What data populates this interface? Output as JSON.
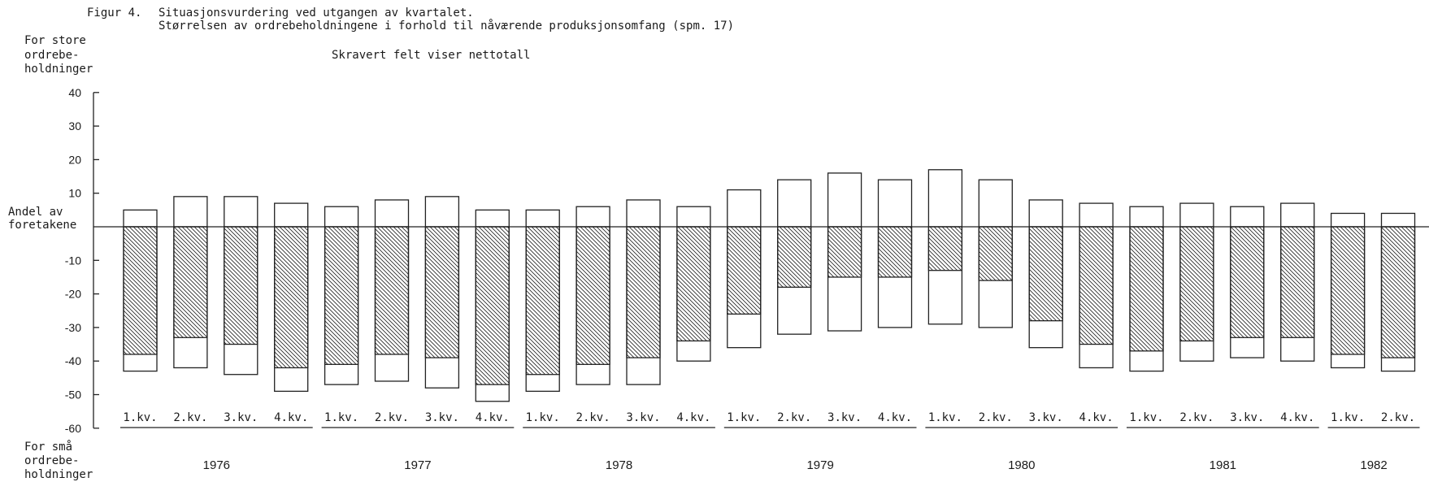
{
  "figure": {
    "label": "Figur 4.",
    "title": "Situasjonsvurdering ved utgangen av kvartalet.",
    "subtitle": "Størrelsen av ordrebeholdningene i forhold til nåværende produksjonsomfang (spm. 17)",
    "note": "Skravert felt viser nettotall",
    "top_label": [
      "For store",
      "ordrebe-",
      "holdninger"
    ],
    "bottom_label": [
      "For små",
      "ordrebe-",
      "holdninger"
    ],
    "ylabel": [
      "Andel av",
      "foretakene"
    ]
  },
  "chart_data": {
    "type": "bar",
    "ylim": [
      -60,
      40
    ],
    "yticks": [
      40,
      30,
      20,
      10,
      -10,
      -20,
      -30,
      -40,
      -50,
      -60
    ],
    "grid": false,
    "quarter_labels": [
      "1.kv.",
      "2.kv.",
      "3.kv.",
      "4.kv.",
      "1.kv.",
      "2.kv.",
      "3.kv.",
      "4.kv.",
      "1.kv.",
      "2.kv.",
      "3.kv.",
      "4.kv.",
      "1.kv.",
      "2.kv.",
      "3.kv.",
      "4.kv.",
      "1.kv.",
      "2.kv.",
      "3.kv.",
      "4.kv.",
      "1.kv.",
      "2.kv.",
      "3.kv.",
      "4.kv.",
      "1.kv.",
      "2.kv."
    ],
    "years": [
      "1976",
      "1977",
      "1978",
      "1979",
      "1980",
      "1981",
      "1982"
    ],
    "series": [
      {
        "name": "For store ordrebeholdninger",
        "values": [
          5,
          9,
          9,
          7,
          6,
          8,
          9,
          5,
          5,
          6,
          8,
          6,
          11,
          14,
          16,
          14,
          17,
          14,
          8,
          7,
          6,
          7,
          6,
          7,
          4,
          4
        ]
      },
      {
        "name": "For små ordrebeholdninger",
        "values": [
          -43,
          -42,
          -44,
          -49,
          -47,
          -46,
          -48,
          -52,
          -49,
          -47,
          -47,
          -40,
          -36,
          -32,
          -31,
          -30,
          -29,
          -30,
          -36,
          -42,
          -43,
          -40,
          -39,
          -40,
          -42,
          -43
        ]
      },
      {
        "name": "Nettotall",
        "values": [
          -38,
          -33,
          -35,
          -42,
          -41,
          -38,
          -39,
          -47,
          -44,
          -41,
          -39,
          -34,
          -26,
          -18,
          -15,
          -15,
          -13,
          -16,
          -28,
          -35,
          -37,
          -34,
          -33,
          -33,
          -38,
          -39
        ]
      }
    ]
  }
}
